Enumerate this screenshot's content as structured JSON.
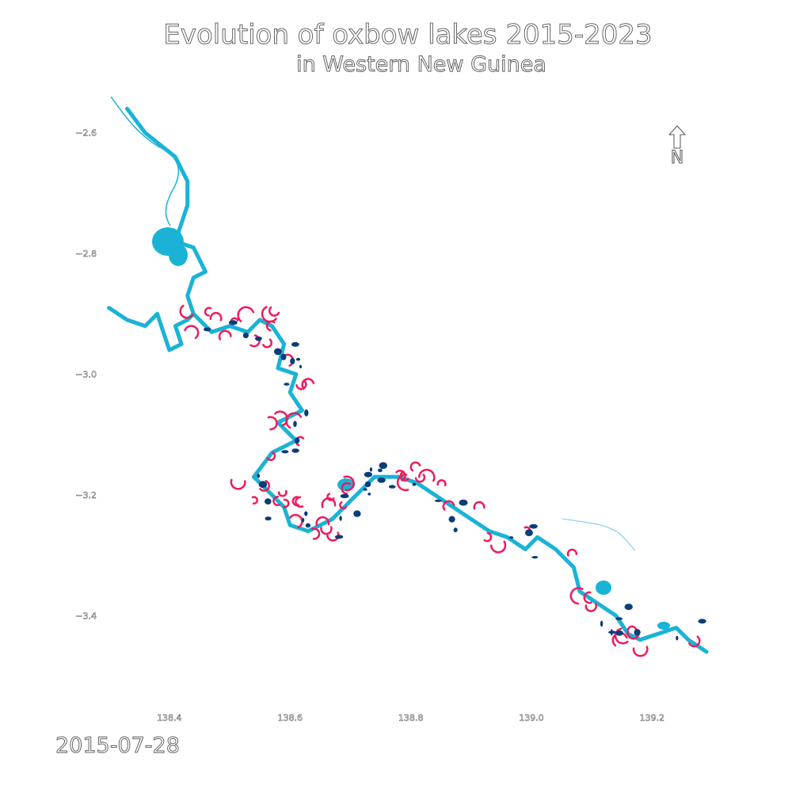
{
  "title": "Evolution of oxbow lakes 2015-2023",
  "subtitle": "in Western New Guinea",
  "date": "2015-07-28",
  "north_arrow": {
    "letter": "N"
  },
  "axes": {
    "x": {
      "ticks": [
        "138.4",
        "138.6",
        "138.8",
        "139.0",
        "139.2"
      ],
      "values": [
        138.4,
        138.6,
        138.8,
        139.0,
        139.2
      ],
      "range": [
        138.29,
        139.29
      ]
    },
    "y": {
      "ticks": [
        "−2.6",
        "−2.8",
        "−3.0",
        "−3.2",
        "−3.4"
      ],
      "values": [
        -2.6,
        -2.8,
        -3.0,
        -3.2,
        -3.4
      ],
      "range": [
        -3.54,
        -2.54
      ]
    }
  },
  "colors": {
    "river": "#1ab3d6",
    "new_water": "#ef1a5b",
    "lost_water": "#0a3d7a",
    "tick_text": "#555555"
  },
  "layers": {
    "river_path": [
      [
        138.3,
        -2.89
      ],
      [
        138.33,
        -2.91
      ],
      [
        138.36,
        -2.92
      ],
      [
        138.38,
        -2.9
      ],
      [
        138.39,
        -2.93
      ],
      [
        138.4,
        -2.96
      ],
      [
        138.42,
        -2.95
      ],
      [
        138.41,
        -2.92
      ],
      [
        138.43,
        -2.91
      ],
      [
        138.44,
        -2.9
      ],
      [
        138.43,
        -2.87
      ],
      [
        138.44,
        -2.84
      ],
      [
        138.46,
        -2.83
      ],
      [
        138.44,
        -2.79
      ],
      [
        138.41,
        -2.78
      ],
      [
        138.42,
        -2.75
      ],
      [
        138.43,
        -2.72
      ],
      [
        138.43,
        -2.68
      ],
      [
        138.41,
        -2.64
      ],
      [
        138.36,
        -2.6
      ],
      [
        138.33,
        -2.56
      ],
      [
        138.44,
        -2.9
      ],
      [
        138.47,
        -2.93
      ],
      [
        138.5,
        -2.92
      ],
      [
        138.53,
        -2.93
      ],
      [
        138.55,
        -2.91
      ],
      [
        138.57,
        -2.92
      ],
      [
        138.59,
        -2.95
      ],
      [
        138.58,
        -2.99
      ],
      [
        138.61,
        -3.0
      ],
      [
        138.6,
        -3.03
      ],
      [
        138.62,
        -3.06
      ],
      [
        138.58,
        -3.08
      ],
      [
        138.61,
        -3.11
      ],
      [
        138.57,
        -3.13
      ],
      [
        138.54,
        -3.17
      ],
      [
        138.57,
        -3.2
      ],
      [
        138.59,
        -3.22
      ],
      [
        138.6,
        -3.25
      ],
      [
        138.63,
        -3.26
      ],
      [
        138.67,
        -3.24
      ],
      [
        138.7,
        -3.21
      ],
      [
        138.74,
        -3.17
      ],
      [
        138.78,
        -3.17
      ],
      [
        138.81,
        -3.18
      ],
      [
        138.84,
        -3.2
      ],
      [
        138.87,
        -3.22
      ],
      [
        138.9,
        -3.24
      ],
      [
        138.93,
        -3.26
      ],
      [
        138.96,
        -3.27
      ],
      [
        138.99,
        -3.29
      ],
      [
        139.01,
        -3.27
      ],
      [
        139.04,
        -3.29
      ],
      [
        139.07,
        -3.32
      ],
      [
        139.08,
        -3.36
      ],
      [
        139.11,
        -3.38
      ],
      [
        139.14,
        -3.4
      ],
      [
        139.16,
        -3.43
      ],
      [
        139.18,
        -3.44
      ],
      [
        139.21,
        -3.43
      ],
      [
        139.24,
        -3.42
      ],
      [
        139.26,
        -3.44
      ],
      [
        139.29,
        -3.46
      ]
    ]
  }
}
